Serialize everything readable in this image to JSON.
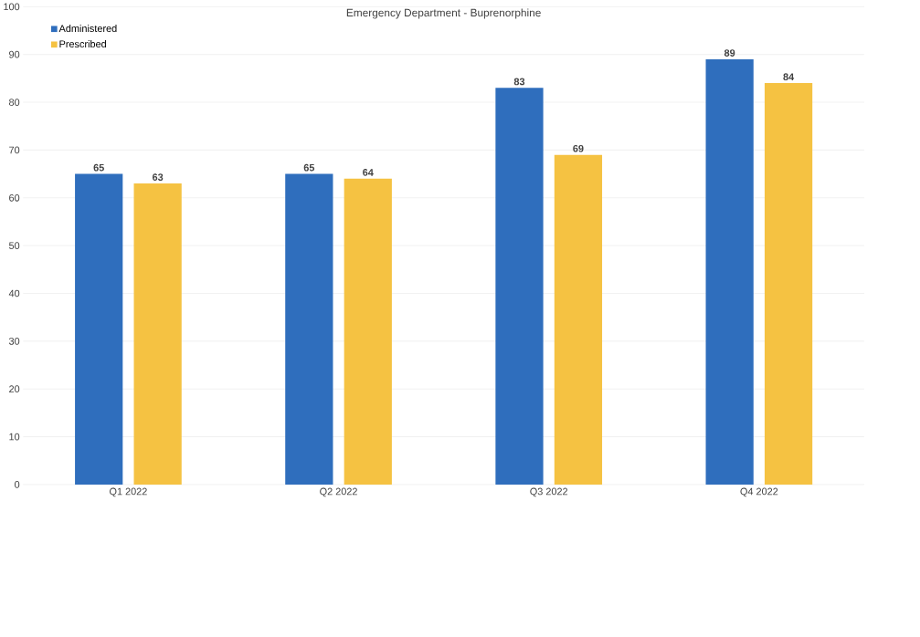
{
  "chart_data": {
    "type": "bar",
    "title": "Emergency Department - Buprenorphine",
    "categories": [
      "Q1 2022",
      "Q2 2022",
      "Q3 2022",
      "Q4 2022"
    ],
    "series": [
      {
        "name": "Administered",
        "color": "#2f6ebd",
        "values": [
          65,
          65,
          83,
          89
        ]
      },
      {
        "name": "Prescribed",
        "color": "#f5c242",
        "values": [
          63,
          64,
          69,
          84
        ]
      }
    ],
    "ylim": [
      0,
      100
    ],
    "yticks": [
      0,
      10,
      20,
      30,
      40,
      50,
      60,
      70,
      80,
      90,
      100
    ],
    "grid": "y",
    "legend": "top left",
    "data_labels": true
  }
}
